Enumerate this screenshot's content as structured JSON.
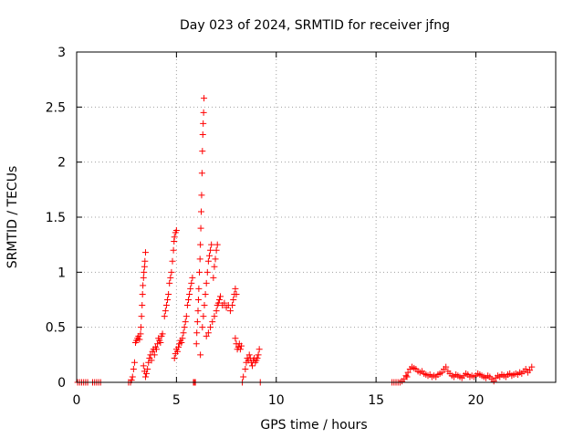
{
  "chart_data": {
    "type": "scatter",
    "title": "Day 023 of 2024, SRMTID for receiver jfng",
    "xlabel": "GPS time / hours",
    "ylabel": "SRMTID / TECUs",
    "xlim": [
      0,
      24
    ],
    "ylim": [
      0,
      3
    ],
    "x_ticks": [
      0,
      5,
      10,
      15,
      20
    ],
    "y_ticks": [
      0,
      0.5,
      1,
      1.5,
      2,
      2.5,
      3
    ],
    "x_tick_labels": [
      "0",
      "5",
      "10",
      "15",
      "20"
    ],
    "y_tick_labels": [
      "0",
      "0.5",
      "1",
      "1.5",
      "2",
      "2.5",
      "3"
    ],
    "grid": true,
    "marker": "plus",
    "series": [
      {
        "name": "SRMTID",
        "color": "#ff0000",
        "points": [
          [
            0.05,
            0
          ],
          [
            0.15,
            0
          ],
          [
            0.25,
            0
          ],
          [
            0.35,
            0
          ],
          [
            0.45,
            0
          ],
          [
            0.55,
            0
          ],
          [
            0.8,
            0
          ],
          [
            0.9,
            0
          ],
          [
            1.0,
            0
          ],
          [
            1.1,
            0
          ],
          [
            1.2,
            0
          ],
          [
            2.6,
            0
          ],
          [
            2.7,
            0
          ],
          [
            2.75,
            0.02
          ],
          [
            2.8,
            0.05
          ],
          [
            2.85,
            0.12
          ],
          [
            2.9,
            0.18
          ],
          [
            2.95,
            0.36
          ],
          [
            3.0,
            0.38
          ],
          [
            3.05,
            0.4
          ],
          [
            3.1,
            0.42
          ],
          [
            3.15,
            0.39
          ],
          [
            3.2,
            0.44
          ],
          [
            3.22,
            0.5
          ],
          [
            3.25,
            0.6
          ],
          [
            3.28,
            0.7
          ],
          [
            3.3,
            0.8
          ],
          [
            3.32,
            0.88
          ],
          [
            3.35,
            0.95
          ],
          [
            3.37,
            1.0
          ],
          [
            3.4,
            1.05
          ],
          [
            3.42,
            1.1
          ],
          [
            3.45,
            1.18
          ],
          [
            3.35,
            0.15
          ],
          [
            3.4,
            0.1
          ],
          [
            3.45,
            0.05
          ],
          [
            3.5,
            0.08
          ],
          [
            3.55,
            0.12
          ],
          [
            3.6,
            0.18
          ],
          [
            3.65,
            0.22
          ],
          [
            3.7,
            0.25
          ],
          [
            3.75,
            0.2
          ],
          [
            3.8,
            0.28
          ],
          [
            3.85,
            0.3
          ],
          [
            3.9,
            0.25
          ],
          [
            3.95,
            0.32
          ],
          [
            4.0,
            0.3
          ],
          [
            4.05,
            0.35
          ],
          [
            4.1,
            0.4
          ],
          [
            4.15,
            0.38
          ],
          [
            4.2,
            0.36
          ],
          [
            4.25,
            0.42
          ],
          [
            4.3,
            0.44
          ],
          [
            4.4,
            0.6
          ],
          [
            4.45,
            0.65
          ],
          [
            4.5,
            0.7
          ],
          [
            4.55,
            0.75
          ],
          [
            4.6,
            0.8
          ],
          [
            4.65,
            0.9
          ],
          [
            4.7,
            0.95
          ],
          [
            4.75,
            1.0
          ],
          [
            4.8,
            1.1
          ],
          [
            4.85,
            1.2
          ],
          [
            4.88,
            1.28
          ],
          [
            4.9,
            1.32
          ],
          [
            4.95,
            1.36
          ],
          [
            5.0,
            1.38
          ],
          [
            4.9,
            0.22
          ],
          [
            4.95,
            0.26
          ],
          [
            5.0,
            0.3
          ],
          [
            5.05,
            0.28
          ],
          [
            5.1,
            0.32
          ],
          [
            5.15,
            0.35
          ],
          [
            5.2,
            0.38
          ],
          [
            5.25,
            0.36
          ],
          [
            5.3,
            0.4
          ],
          [
            5.35,
            0.45
          ],
          [
            5.4,
            0.5
          ],
          [
            5.45,
            0.55
          ],
          [
            5.5,
            0.6
          ],
          [
            5.55,
            0.7
          ],
          [
            5.6,
            0.75
          ],
          [
            5.65,
            0.8
          ],
          [
            5.7,
            0.85
          ],
          [
            5.75,
            0.9
          ],
          [
            5.8,
            0.95
          ],
          [
            5.85,
            0
          ],
          [
            5.9,
            0
          ],
          [
            5.95,
            0
          ],
          [
            6.0,
            0.35
          ],
          [
            6.02,
            0.45
          ],
          [
            6.05,
            0.55
          ],
          [
            6.08,
            0.65
          ],
          [
            6.1,
            0.75
          ],
          [
            6.12,
            0.85
          ],
          [
            6.15,
            1.0
          ],
          [
            6.18,
            1.12
          ],
          [
            6.2,
            1.25
          ],
          [
            6.22,
            1.4
          ],
          [
            6.24,
            1.55
          ],
          [
            6.26,
            1.7
          ],
          [
            6.28,
            1.9
          ],
          [
            6.3,
            2.1
          ],
          [
            6.32,
            2.25
          ],
          [
            6.34,
            2.35
          ],
          [
            6.36,
            2.45
          ],
          [
            6.38,
            2.58
          ],
          [
            6.2,
            0.25
          ],
          [
            6.3,
            0.5
          ],
          [
            6.35,
            0.6
          ],
          [
            6.4,
            0.7
          ],
          [
            6.45,
            0.8
          ],
          [
            6.5,
            0.9
          ],
          [
            6.55,
            1.0
          ],
          [
            6.6,
            1.1
          ],
          [
            6.65,
            1.15
          ],
          [
            6.7,
            1.2
          ],
          [
            6.75,
            1.25
          ],
          [
            6.5,
            0.42
          ],
          [
            6.6,
            0.45
          ],
          [
            6.7,
            0.5
          ],
          [
            6.8,
            0.55
          ],
          [
            6.9,
            0.6
          ],
          [
            7.0,
            0.65
          ],
          [
            7.05,
            0.7
          ],
          [
            7.1,
            0.72
          ],
          [
            7.15,
            0.75
          ],
          [
            7.2,
            0.78
          ],
          [
            6.85,
            0.95
          ],
          [
            6.9,
            1.05
          ],
          [
            6.95,
            1.12
          ],
          [
            7.0,
            1.2
          ],
          [
            7.05,
            1.25
          ],
          [
            7.3,
            0.7
          ],
          [
            7.4,
            0.72
          ],
          [
            7.5,
            0.68
          ],
          [
            7.6,
            0.7
          ],
          [
            7.7,
            0.65
          ],
          [
            7.8,
            0.7
          ],
          [
            7.85,
            0.75
          ],
          [
            7.9,
            0.8
          ],
          [
            7.95,
            0.85
          ],
          [
            8.0,
            0.8
          ],
          [
            7.95,
            0.4
          ],
          [
            8.0,
            0.35
          ],
          [
            8.05,
            0.3
          ],
          [
            8.1,
            0.32
          ],
          [
            8.15,
            0.35
          ],
          [
            8.2,
            0.3
          ],
          [
            8.25,
            0.33
          ],
          [
            8.3,
            0
          ],
          [
            8.35,
            0.05
          ],
          [
            8.45,
            0.12
          ],
          [
            8.5,
            0.18
          ],
          [
            8.55,
            0.22
          ],
          [
            8.6,
            0.2
          ],
          [
            8.65,
            0.25
          ],
          [
            8.7,
            0.22
          ],
          [
            8.75,
            0.18
          ],
          [
            8.8,
            0.15
          ],
          [
            8.85,
            0.2
          ],
          [
            8.9,
            0.22
          ],
          [
            8.95,
            0.18
          ],
          [
            9.0,
            0.2
          ],
          [
            9.05,
            0.22
          ],
          [
            9.1,
            0.25
          ],
          [
            9.15,
            0.3
          ],
          [
            9.2,
            0
          ],
          [
            15.8,
            0
          ],
          [
            15.9,
            0
          ],
          [
            16.0,
            0
          ],
          [
            16.1,
            0
          ],
          [
            16.2,
            0
          ],
          [
            16.3,
            0.01
          ],
          [
            16.4,
            0.03
          ],
          [
            16.5,
            0.06
          ],
          [
            16.55,
            0.05
          ],
          [
            16.6,
            0.09
          ],
          [
            16.7,
            0.12
          ],
          [
            16.8,
            0.14
          ],
          [
            16.9,
            0.13
          ],
          [
            17.0,
            0.12
          ],
          [
            17.1,
            0.1
          ],
          [
            17.2,
            0.09
          ],
          [
            17.3,
            0.1
          ],
          [
            17.4,
            0.08
          ],
          [
            17.5,
            0.07
          ],
          [
            17.6,
            0.06
          ],
          [
            17.7,
            0.07
          ],
          [
            17.8,
            0.05
          ],
          [
            17.9,
            0.06
          ],
          [
            18.0,
            0.05
          ],
          [
            18.1,
            0.07
          ],
          [
            18.2,
            0.08
          ],
          [
            18.3,
            0.09
          ],
          [
            18.4,
            0.12
          ],
          [
            18.5,
            0.14
          ],
          [
            18.6,
            0.1
          ],
          [
            18.7,
            0.08
          ],
          [
            18.8,
            0.06
          ],
          [
            18.9,
            0.05
          ],
          [
            19.0,
            0.07
          ],
          [
            19.1,
            0.06
          ],
          [
            19.2,
            0.05
          ],
          [
            19.3,
            0.04
          ],
          [
            19.4,
            0.06
          ],
          [
            19.5,
            0.08
          ],
          [
            19.6,
            0.07
          ],
          [
            19.7,
            0.05
          ],
          [
            19.8,
            0.06
          ],
          [
            19.9,
            0.05
          ],
          [
            20.0,
            0.06
          ],
          [
            20.1,
            0.08
          ],
          [
            20.2,
            0.07
          ],
          [
            20.3,
            0.06
          ],
          [
            20.4,
            0.05
          ],
          [
            20.5,
            0.04
          ],
          [
            20.6,
            0.06
          ],
          [
            20.7,
            0.05
          ],
          [
            20.8,
            0.03
          ],
          [
            20.9,
            0.01
          ],
          [
            21.0,
            0.04
          ],
          [
            21.1,
            0.06
          ],
          [
            21.2,
            0.05
          ],
          [
            21.3,
            0.07
          ],
          [
            21.4,
            0.06
          ],
          [
            21.5,
            0.05
          ],
          [
            21.6,
            0.07
          ],
          [
            21.7,
            0.08
          ],
          [
            21.8,
            0.06
          ],
          [
            21.9,
            0.07
          ],
          [
            22.0,
            0.08
          ],
          [
            22.1,
            0.07
          ],
          [
            22.2,
            0.09
          ],
          [
            22.3,
            0.08
          ],
          [
            22.4,
            0.1
          ],
          [
            22.5,
            0.12
          ],
          [
            22.6,
            0.09
          ],
          [
            22.7,
            0.11
          ],
          [
            22.8,
            0.14
          ]
        ]
      }
    ]
  }
}
